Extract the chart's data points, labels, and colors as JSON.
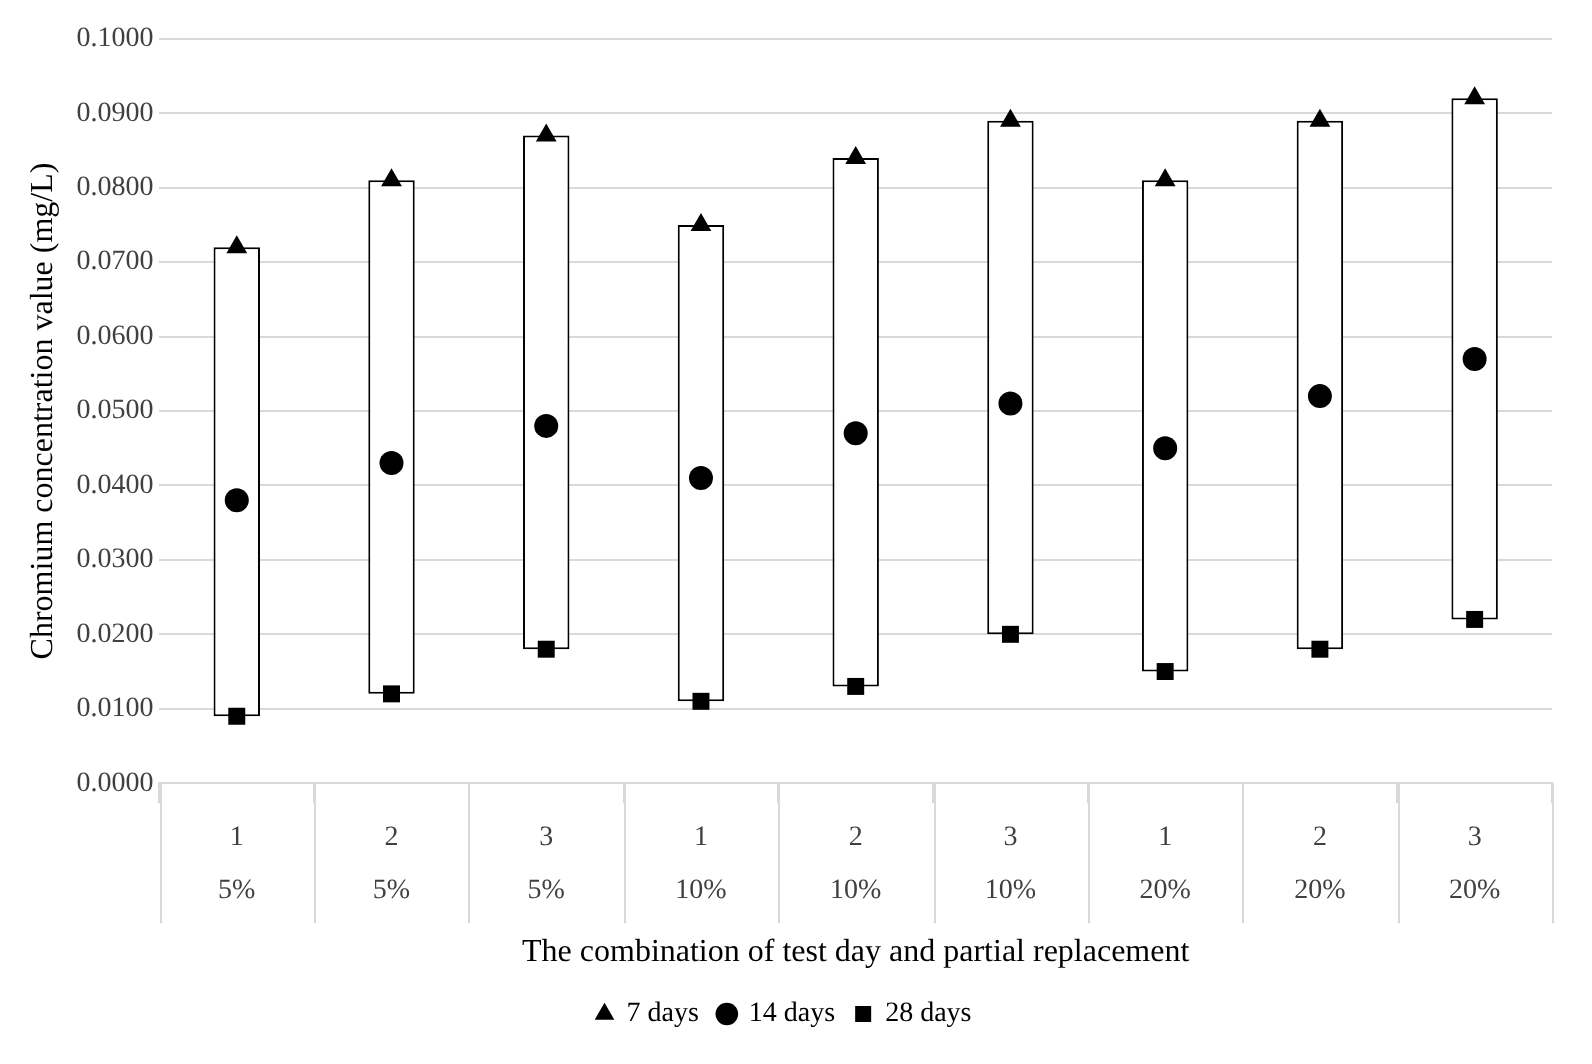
{
  "chart_data": {
    "type": "bar",
    "xlabel": "The combination of test day and partial replacement",
    "ylabel": "Chromium concentration value (mg/L)",
    "categories": [
      "1\n5%",
      "2\n5%",
      "3\n5%",
      "1\n10%",
      "2\n10%",
      "3\n10%",
      "1\n20%",
      "2\n20%",
      "3\n20%"
    ],
    "series": [
      {
        "type": "bar",
        "color": "#ffffff",
        "base": [
          0.009,
          0.012,
          0.018,
          0.011,
          0.013,
          0.02,
          0.015,
          0.018,
          0.022
        ],
        "values": [
          0.063,
          0.069,
          0.069,
          0.064,
          0.071,
          0.069,
          0.066,
          0.071,
          0.07
        ]
      },
      {
        "type": "scatter",
        "name": "7 days",
        "marker": "triangle",
        "color": "#000000",
        "values": [
          0.072,
          0.081,
          0.087,
          0.075,
          0.084,
          0.089,
          0.081,
          0.089,
          0.092
        ]
      },
      {
        "type": "scatter",
        "name": "14 days",
        "marker": "circle",
        "color": "#000000",
        "values": [
          0.038,
          0.043,
          0.048,
          0.041,
          0.047,
          0.051,
          0.045,
          0.052,
          0.057
        ]
      },
      {
        "type": "scatter",
        "name": "28 days",
        "marker": "square",
        "color": "#000000",
        "values": [
          0.009,
          0.012,
          0.018,
          0.011,
          0.013,
          0.02,
          0.015,
          0.018,
          0.022
        ]
      }
    ],
    "ylim": [
      0,
      0.1
    ],
    "yticks": [
      {
        "value": 0,
        "label": "0.0000"
      },
      {
        "value": 0.01,
        "label": "0.0100"
      },
      {
        "value": 0.02,
        "label": "0.0200"
      },
      {
        "value": 0.03,
        "label": "0.0300"
      },
      {
        "value": 0.04,
        "label": "0.0400"
      },
      {
        "value": 0.05,
        "label": "0.0500"
      },
      {
        "value": 0.06,
        "label": "0.0600"
      },
      {
        "value": 0.07,
        "label": "0.0700"
      },
      {
        "value": 0.08,
        "label": "0.0800"
      },
      {
        "value": 0.09,
        "label": "0.0900"
      },
      {
        "value": 0.1,
        "label": "0.1000"
      }
    ],
    "grid": "y",
    "legend": "bottom"
  }
}
